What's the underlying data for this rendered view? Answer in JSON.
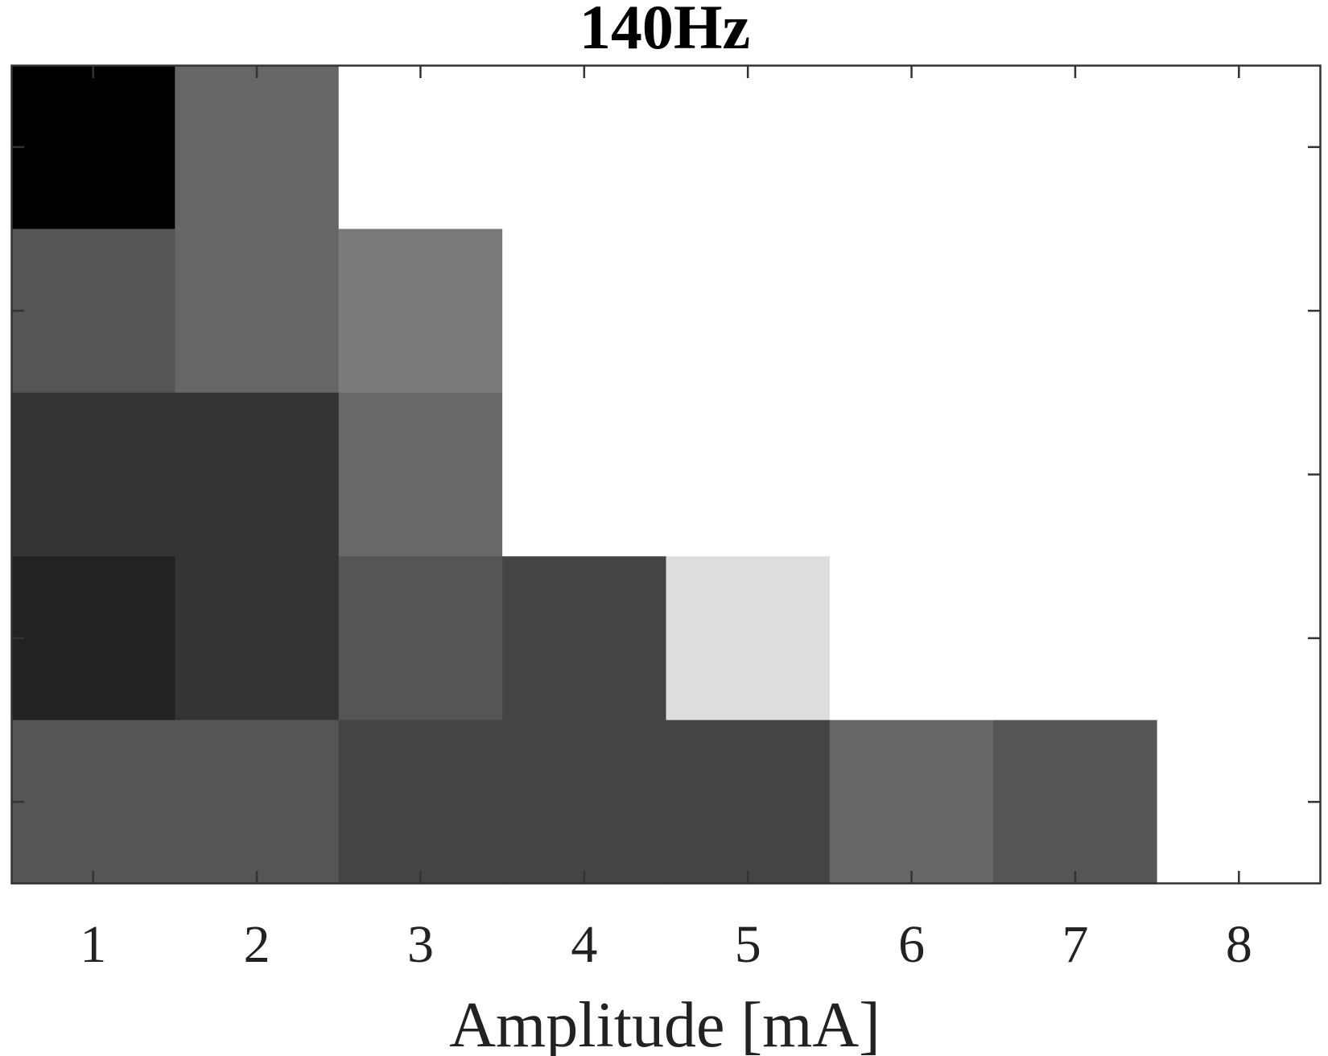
{
  "chart_data": {
    "type": "heatmap",
    "title": "140Hz",
    "xlabel": "Amplitude [mA]",
    "ylabel": "",
    "x_tick_labels": [
      "1",
      "2",
      "3",
      "4",
      "5",
      "6",
      "7",
      "8"
    ],
    "y_tick_labels": [],
    "colormap": "grayscale",
    "grid": false,
    "colors": {
      "axis": "#333333",
      "background": "#ffffff"
    },
    "rows": [
      {
        "row": 1,
        "gray_levels": [
          "#000000",
          "#666666",
          "#ffffff",
          "#ffffff",
          "#ffffff",
          "#ffffff",
          "#ffffff",
          "#ffffff"
        ]
      },
      {
        "row": 2,
        "gray_levels": [
          "#555555",
          "#666666",
          "#7a7a7a",
          "#ffffff",
          "#ffffff",
          "#ffffff",
          "#ffffff",
          "#ffffff"
        ]
      },
      {
        "row": 3,
        "gray_levels": [
          "#333333",
          "#333333",
          "#686868",
          "#ffffff",
          "#ffffff",
          "#ffffff",
          "#ffffff",
          "#ffffff"
        ]
      },
      {
        "row": 4,
        "gray_levels": [
          "#222222",
          "#333333",
          "#555555",
          "#444444",
          "#dddddd",
          "#ffffff",
          "#ffffff",
          "#ffffff"
        ]
      },
      {
        "row": 5,
        "gray_levels": [
          "#555555",
          "#555555",
          "#444444",
          "#444444",
          "#444444",
          "#676767",
          "#555555",
          "#ffffff"
        ]
      }
    ]
  }
}
